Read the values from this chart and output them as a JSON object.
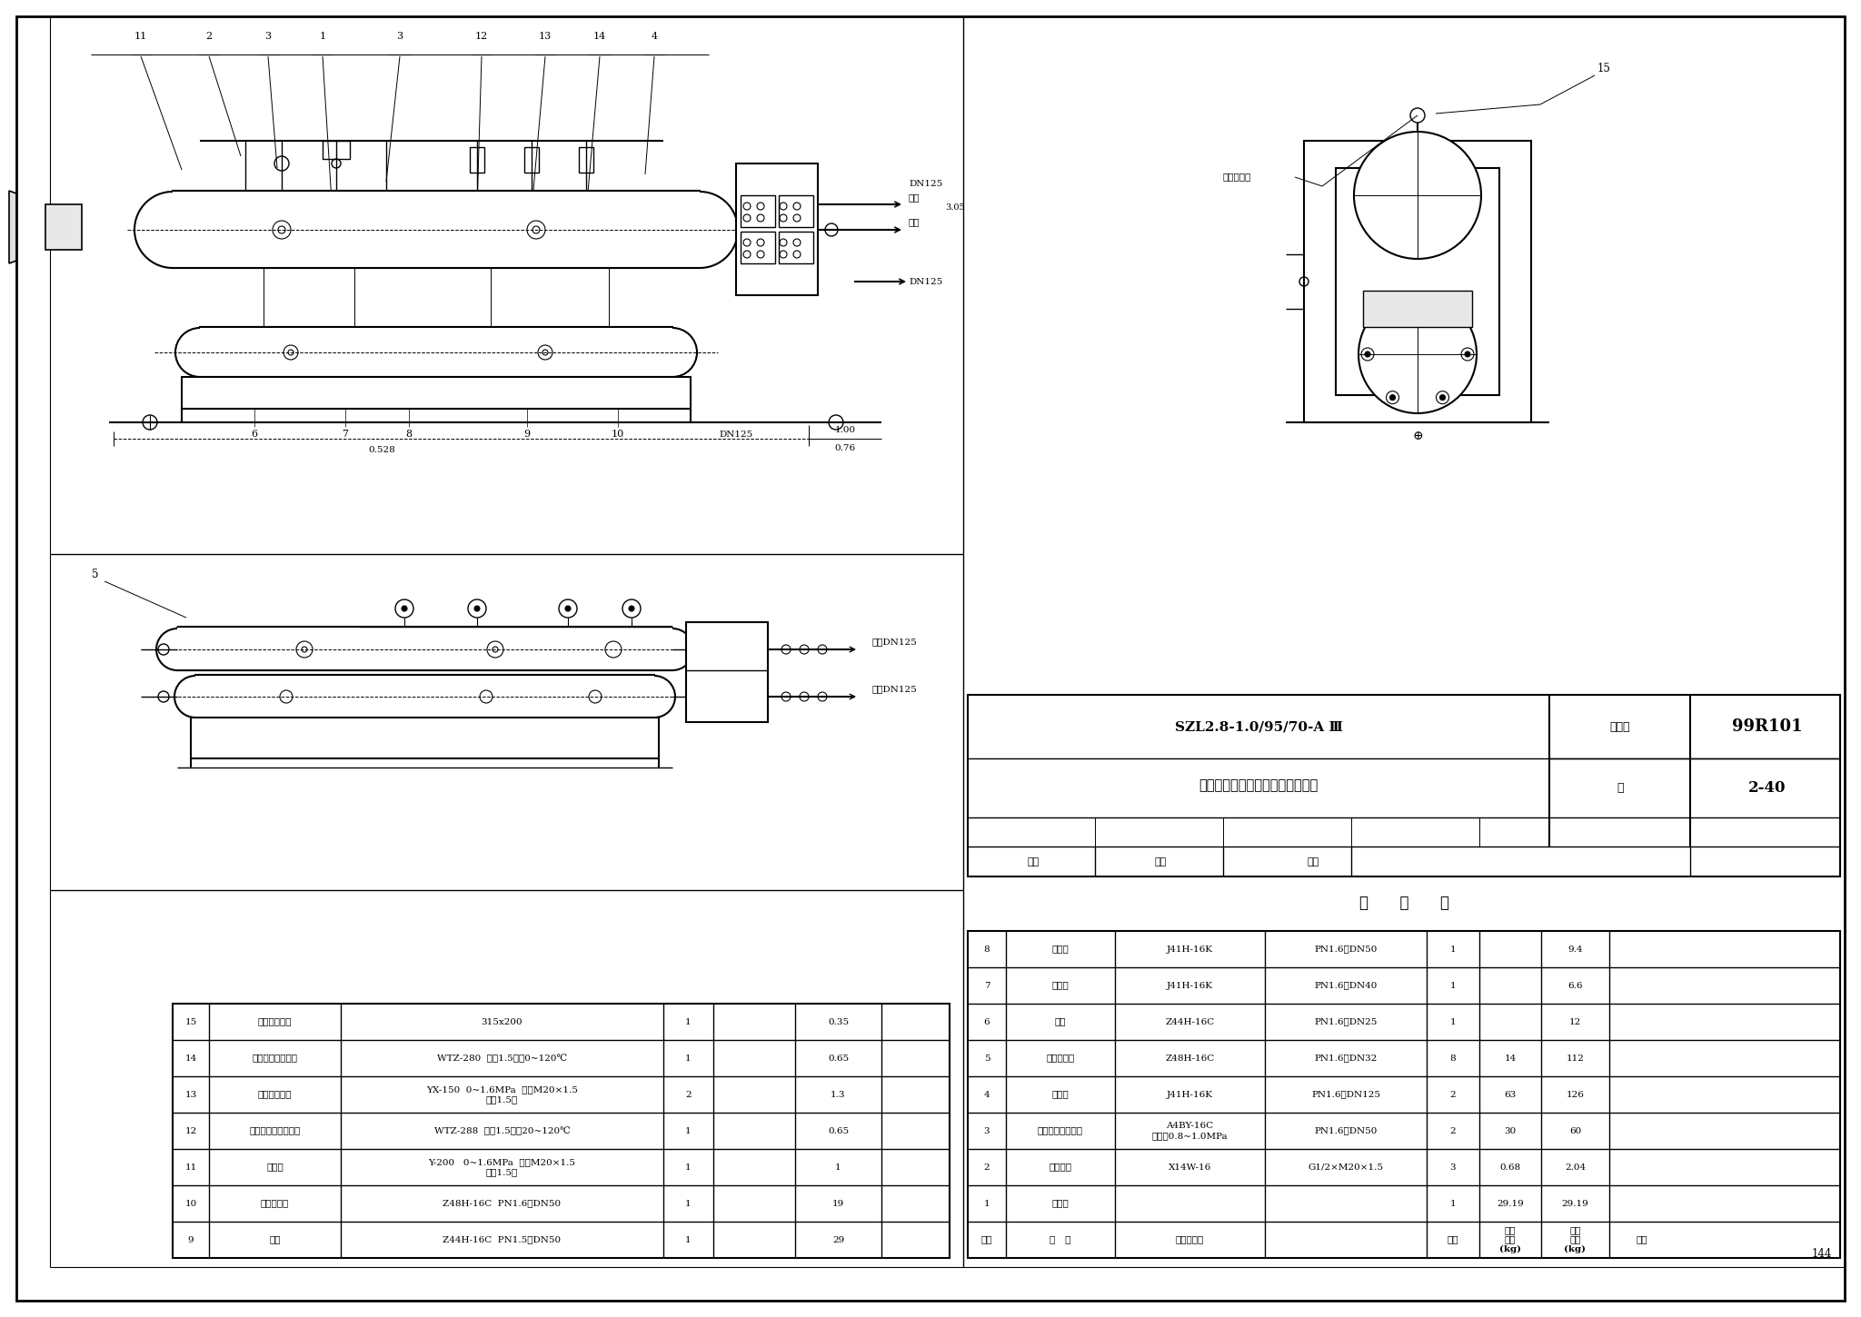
{
  "bg": "#ffffff",
  "page_number": "144",
  "figure_number": "2-40",
  "atlas_number": "99R101",
  "title_main": "SZL2.8-1.0/95/70-A Ⅲ",
  "title_sub": "组装热水锅炉管道、阀门、仪表图",
  "atlas_label": "图集号",
  "page_label": "页",
  "review_label": "审核",
  "check_label": "校对",
  "design_label": "设计",
  "mingxi_title": "明      细      表",
  "right_table_rows": [
    [
      "8",
      "截止阀",
      "J41H-16K",
      "PN1.6、DN50",
      "1",
      "",
      "9.4",
      ""
    ],
    [
      "7",
      "截止阀",
      "J41H-16K",
      "PN1.6、DN40",
      "1",
      "",
      "6.6",
      ""
    ],
    [
      "6",
      "闸阀",
      "Z44H-16C",
      "PN1.6、DN25",
      "1",
      "",
      "12",
      ""
    ],
    [
      "5",
      "快速排污阀",
      "Z48H-16C",
      "PN1.6、DN32",
      "8",
      "14",
      "112",
      ""
    ],
    [
      "4",
      "截止阀",
      "J41H-16K",
      "PN1.6、DN125",
      "2",
      "63",
      "126",
      ""
    ],
    [
      "3",
      "弹簧全起式安全阀",
      "A4BY-16C\n压力挃0.8~1.0MPa",
      "PN1.6、DN50",
      "2",
      "30",
      "60",
      ""
    ],
    [
      "2",
      "三通旋塞",
      "X14W-16",
      "G1/2×M20×1.5",
      "3",
      "0.68",
      "2.04",
      ""
    ],
    [
      "1",
      "集气罐",
      "",
      "",
      "1",
      "29.19",
      "29.19",
      ""
    ],
    [
      "序号",
      "名   称",
      "规格、型号",
      "",
      "数量",
      "单件\n重量\n(kg)",
      "设计\n总重\n(kg)",
      "备注"
    ]
  ],
  "left_table_rows": [
    [
      "15",
      "热水锅炉名牌",
      "315x200",
      "1",
      "",
      "0.35",
      ""
    ],
    [
      "14",
      "压力式指示温度计",
      "WTZ-280  精度1.5级、0~120℃",
      "1",
      "",
      "0.65",
      ""
    ],
    [
      "13",
      "电接点压力表",
      "YX-150  0~1.6MPa  接口M20×1.5\n精度1.5级",
      "2",
      "",
      "1.3",
      ""
    ],
    [
      "12",
      "电接点压力式温度计",
      "WTZ-288  精度1.5级、20~120℃",
      "1",
      "",
      "0.65",
      ""
    ],
    [
      "11",
      "压力表",
      "Y-200   0~1.6MPa  接口M20×1.5\n精度1.5级",
      "1",
      "",
      "1",
      ""
    ],
    [
      "10",
      "快速排污阀",
      "Z48H-16C  PN1.6、DN50",
      "1",
      "",
      "19",
      ""
    ],
    [
      "9",
      "闸阀",
      "Z44H-16C  PN1.5、DN50",
      "1",
      "",
      "29",
      ""
    ]
  ]
}
